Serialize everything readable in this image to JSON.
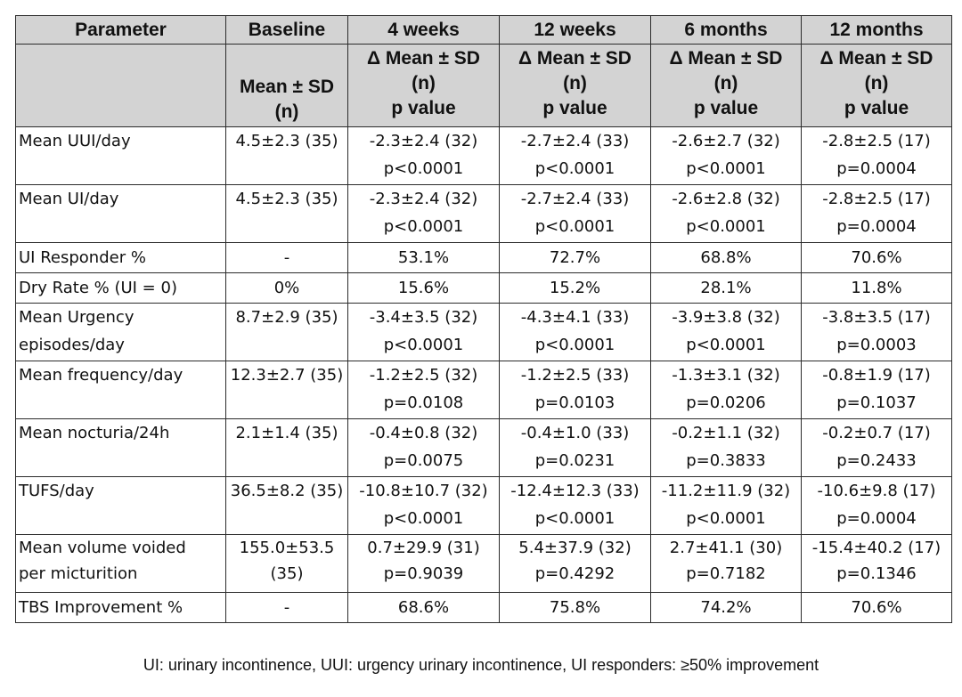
{
  "header": {
    "columns": [
      {
        "title": "Parameter",
        "sub": []
      },
      {
        "title": "Baseline",
        "sub": [
          "Mean ± SD",
          "(n)"
        ]
      },
      {
        "title": "4 weeks",
        "sub": [
          "Δ Mean ± SD",
          "(n)",
          "p value"
        ]
      },
      {
        "title": "12 weeks",
        "sub": [
          "Δ Mean ± SD",
          "(n)",
          "p value"
        ]
      },
      {
        "title": "6 months",
        "sub": [
          "Δ Mean ± SD",
          "(n)",
          "p value"
        ]
      },
      {
        "title": "12 months",
        "sub": [
          "Δ Mean ± SD",
          "(n)",
          "p value"
        ]
      }
    ]
  },
  "rows": [
    {
      "param": [
        "Mean UUI/day"
      ],
      "baseline": [
        "4.5±2.3 (35)"
      ],
      "w4": [
        "-2.3±2.4 (32)",
        "p<0.0001"
      ],
      "w12": [
        "-2.7±2.4 (33)",
        "p<0.0001"
      ],
      "m6": [
        "-2.6±2.7 (32)",
        "p<0.0001"
      ],
      "m12": [
        "-2.8±2.5 (17)",
        "p=0.0004"
      ]
    },
    {
      "param": [
        "Mean UI/day"
      ],
      "baseline": [
        "4.5±2.3 (35)"
      ],
      "w4": [
        "-2.3±2.4 (32)",
        "p<0.0001"
      ],
      "w12": [
        "-2.7±2.4 (33)",
        "p<0.0001"
      ],
      "m6": [
        "-2.6±2.8 (32)",
        "p<0.0001"
      ],
      "m12": [
        "-2.8±2.5 (17)",
        "p=0.0004"
      ]
    },
    {
      "param": [
        "UI Responder %"
      ],
      "baseline": [
        "-"
      ],
      "w4": [
        "53.1%"
      ],
      "w12": [
        "72.7%"
      ],
      "m6": [
        "68.8%"
      ],
      "m12": [
        "70.6%"
      ]
    },
    {
      "param": [
        "Dry Rate % (UI = 0)"
      ],
      "baseline": [
        "0%"
      ],
      "w4": [
        "15.6%"
      ],
      "w12": [
        "15.2%"
      ],
      "m6": [
        "28.1%"
      ],
      "m12": [
        "11.8%"
      ]
    },
    {
      "param": [
        "Mean Urgency",
        "episodes/day"
      ],
      "baseline": [
        "8.7±2.9 (35)"
      ],
      "w4": [
        "-3.4±3.5 (32)",
        "p<0.0001"
      ],
      "w12": [
        "-4.3±4.1 (33)",
        "p<0.0001"
      ],
      "m6": [
        "-3.9±3.8 (32)",
        "p<0.0001"
      ],
      "m12": [
        "-3.8±3.5 (17)",
        "p=0.0003"
      ]
    },
    {
      "param": [
        "Mean frequency/day"
      ],
      "baseline": [
        "12.3±2.7 (35)"
      ],
      "w4": [
        "-1.2±2.5 (32)",
        "p=0.0108"
      ],
      "w12": [
        "-1.2±2.5 (33)",
        "p=0.0103"
      ],
      "m6": [
        "-1.3±3.1 (32)",
        "p=0.0206"
      ],
      "m12": [
        "-0.8±1.9 (17)",
        "p=0.1037"
      ]
    },
    {
      "param": [
        "Mean nocturia/24h"
      ],
      "baseline": [
        "2.1±1.4 (35)"
      ],
      "w4": [
        "-0.4±0.8 (32)",
        "p=0.0075"
      ],
      "w12": [
        "-0.4±1.0 (33)",
        "p=0.0231"
      ],
      "m6": [
        "-0.2±1.1 (32)",
        "p=0.3833"
      ],
      "m12": [
        "-0.2±0.7 (17)",
        "p=0.2433"
      ]
    },
    {
      "param": [
        "TUFS/day"
      ],
      "baseline": [
        "36.5±8.2 (35)"
      ],
      "w4": [
        "-10.8±10.7 (32)",
        "p<0.0001"
      ],
      "w12": [
        "-12.4±12.3 (33)",
        "p<0.0001"
      ],
      "m6": [
        "-11.2±11.9 (32)",
        "p<0.0001"
      ],
      "m12": [
        "-10.6±9.8 (17)",
        "p=0.0004"
      ]
    },
    {
      "param": [
        "Mean volume voided",
        "per micturition"
      ],
      "baseline": [
        "155.0±53.5",
        "(35)"
      ],
      "w4": [
        "0.7±29.9 (31)",
        "p=0.9039"
      ],
      "w12": [
        "5.4±37.9 (32)",
        "p=0.4292"
      ],
      "m6": [
        "2.7±41.1 (30)",
        "p=0.7182"
      ],
      "m12": [
        "-15.4±40.2 (17)",
        "p=0.1346"
      ]
    },
    {
      "param": [
        "TBS Improvement %"
      ],
      "baseline": [
        "-"
      ],
      "w4": [
        "68.6%"
      ],
      "w12": [
        "75.8%"
      ],
      "m6": [
        "74.2%"
      ],
      "m12": [
        "70.6%"
      ]
    }
  ],
  "footnote": "UI: urinary incontinence, UUI: urgency urinary incontinence, UI responders: ≥50% improvement"
}
